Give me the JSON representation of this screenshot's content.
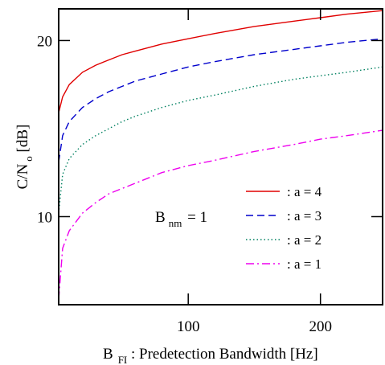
{
  "chart_data": {
    "type": "line",
    "xlabel": {
      "main": "B",
      "sub": "FI",
      "rest": " : Predetection Bandwidth [Hz]"
    },
    "ylabel": {
      "main": "C/N",
      "sub": "o",
      "rest": " [dB]"
    },
    "xlim": [
      2,
      247
    ],
    "ylim": [
      5,
      21.8
    ],
    "xticks": [
      100,
      200
    ],
    "yticks": [
      10,
      20
    ],
    "xtick_labels": [
      "100",
      "200"
    ],
    "ytick_labels": [
      "10",
      "20"
    ],
    "grid": false,
    "annotation": {
      "main": "B",
      "sub": "nm",
      "rest": " = 1"
    },
    "legend_position": "center-right",
    "series": [
      {
        "name": ": a = 4",
        "color": "#e00000",
        "dash": "solid",
        "x": [
          2,
          5,
          10,
          20,
          30,
          40,
          50,
          60,
          80,
          100,
          120,
          150,
          180,
          200,
          220,
          247
        ],
        "y": [
          15.9,
          16.8,
          17.5,
          18.2,
          18.6,
          18.9,
          19.2,
          19.4,
          19.8,
          20.1,
          20.4,
          20.8,
          21.1,
          21.3,
          21.5,
          21.7
        ]
      },
      {
        "name": ": a = 3",
        "color": "#0000cc",
        "dash": "dashed",
        "x": [
          2,
          5,
          10,
          20,
          30,
          40,
          50,
          60,
          80,
          100,
          120,
          150,
          180,
          200,
          220,
          247
        ],
        "y": [
          13.1,
          14.6,
          15.4,
          16.2,
          16.7,
          17.1,
          17.4,
          17.7,
          18.1,
          18.5,
          18.8,
          19.2,
          19.5,
          19.7,
          19.9,
          20.1
        ]
      },
      {
        "name": ": a = 2",
        "color": "#008060",
        "dash": "dotted",
        "x": [
          2,
          5,
          10,
          20,
          30,
          40,
          50,
          60,
          80,
          100,
          120,
          150,
          180,
          200,
          220,
          247
        ],
        "y": [
          10.2,
          12.4,
          13.3,
          14.1,
          14.6,
          15.0,
          15.4,
          15.7,
          16.2,
          16.6,
          16.9,
          17.4,
          17.8,
          18.0,
          18.2,
          18.5
        ]
      },
      {
        "name": ": a = 1",
        "color": "#ee00ee",
        "dash": "dashdot",
        "x": [
          2,
          5,
          10,
          20,
          30,
          40,
          50,
          60,
          80,
          100,
          120,
          150,
          180,
          200,
          220,
          247
        ],
        "y": [
          5.3,
          8.2,
          9.2,
          10.2,
          10.8,
          11.3,
          11.6,
          11.9,
          12.5,
          12.9,
          13.2,
          13.7,
          14.1,
          14.4,
          14.6,
          14.9
        ]
      }
    ]
  }
}
